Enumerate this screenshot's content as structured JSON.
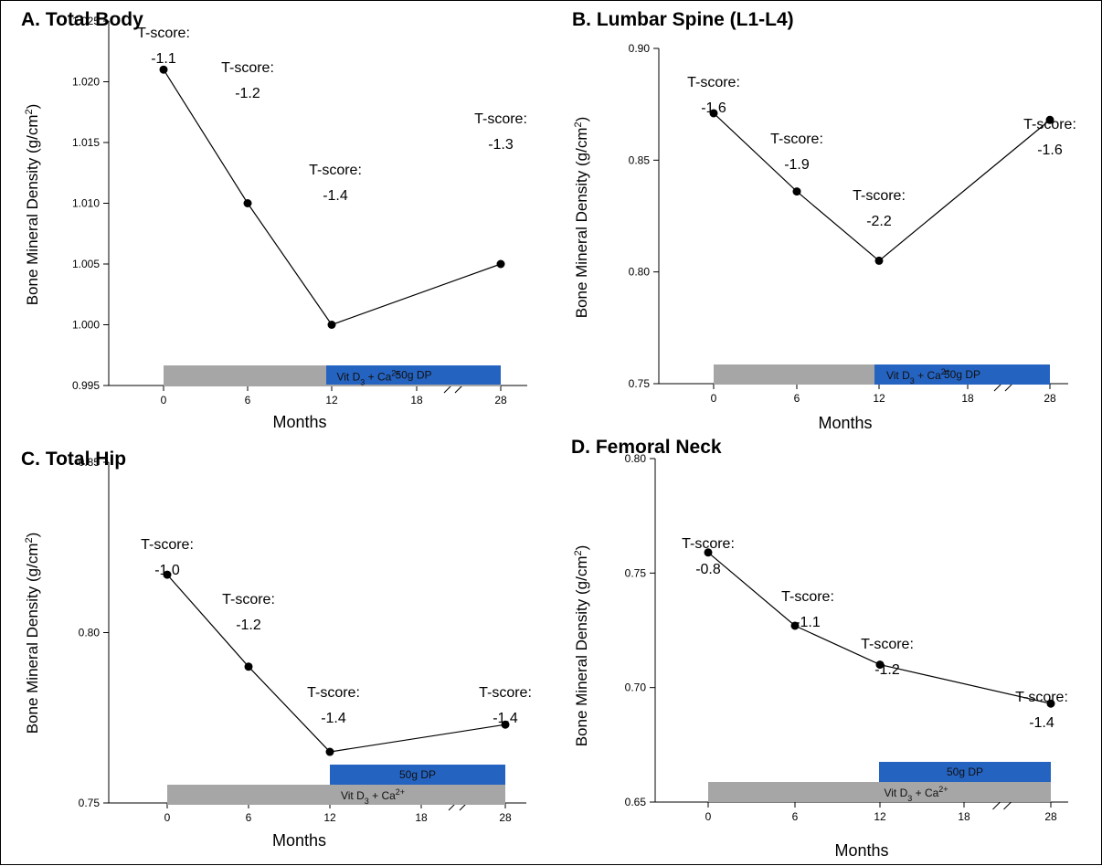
{
  "chart_data": [
    {
      "type": "line",
      "panel": "A",
      "title": "A. Total Body",
      "xlabel": "Months",
      "ylabel": "Bone Mineral Density (g/cm²)",
      "ylim": [
        0.995,
        1.025
      ],
      "yticks": [
        "0.995",
        "1.000",
        "1.005",
        "1.010",
        "1.015",
        "1.020",
        "1.025"
      ],
      "xtick_labels": [
        "0",
        "6",
        "12",
        "18",
        "28"
      ],
      "x": [
        0,
        6,
        12,
        28
      ],
      "y": [
        1.021,
        1.01,
        1.0,
        1.005
      ],
      "annotations": [
        {
          "line1": "T-score:",
          "line2": "-1.1"
        },
        {
          "line1": "T-score:",
          "line2": "-1.2"
        },
        {
          "line1": "T-score:",
          "line2": "-1.4"
        },
        {
          "line1": "T-score:",
          "line2": "-1.3"
        }
      ],
      "bars": {
        "treatment_label": "50g DP",
        "treatment_range": [
          12,
          28
        ],
        "supplement_label": "Vit D₃ + Ca²⁺",
        "supplement_range": [
          0,
          28
        ]
      },
      "axis_break": true,
      "grid": false
    },
    {
      "type": "line",
      "panel": "B",
      "title": "B. Lumbar Spine (L1-L4)",
      "xlabel": "Months",
      "ylabel": "Bone Mineral Density (g/cm²)",
      "ylim": [
        0.75,
        0.9
      ],
      "yticks": [
        "0.75",
        "0.80",
        "0.85",
        "0.90"
      ],
      "xtick_labels": [
        "0",
        "6",
        "12",
        "18",
        "28"
      ],
      "x": [
        0,
        6,
        12,
        28
      ],
      "y": [
        0.871,
        0.836,
        0.805,
        0.868
      ],
      "annotations": [
        {
          "line1": "T-score:",
          "line2": "-1.6"
        },
        {
          "line1": "T-score:",
          "line2": "-1.9"
        },
        {
          "line1": "T-score:",
          "line2": "-2.2"
        },
        {
          "line1": "T-score:",
          "line2": "-1.6"
        }
      ],
      "bars": {
        "treatment_label": "50g DP",
        "treatment_range": [
          12,
          28
        ],
        "supplement_label": "Vit D₃ + Ca²⁺",
        "supplement_range": [
          0,
          28
        ]
      },
      "axis_break": true,
      "grid": false
    },
    {
      "type": "line",
      "panel": "C",
      "title": "C. Total Hip",
      "xlabel": "Months",
      "ylabel": "Bone Mineral Density (g/cm²)",
      "ylim": [
        0.75,
        0.85
      ],
      "yticks": [
        "0.75",
        "0.80",
        "0.85"
      ],
      "xtick_labels": [
        "0",
        "6",
        "12",
        "18",
        "28"
      ],
      "x": [
        0,
        6,
        12,
        28
      ],
      "y": [
        0.817,
        0.79,
        0.765,
        0.773
      ],
      "annotations": [
        {
          "line1": "T-score:",
          "line2": "-1.0"
        },
        {
          "line1": "T-score:",
          "line2": "-1.2"
        },
        {
          "line1": "T-score:",
          "line2": "-1.4"
        },
        {
          "line1": "T-score:",
          "line2": "-1.4"
        }
      ],
      "bars": {
        "treatment_label": "50g DP",
        "treatment_range": [
          12,
          28
        ],
        "supplement_label": "Vit D₃ + Ca²⁺",
        "supplement_range": [
          0,
          28
        ]
      },
      "axis_break": true,
      "grid": false
    },
    {
      "type": "line",
      "panel": "D",
      "title": "D. Femoral Neck",
      "xlabel": "Months",
      "ylabel": "Bone Mineral Density (g/cm²)",
      "ylim": [
        0.65,
        0.8
      ],
      "yticks": [
        "0.65",
        "0.70",
        "0.75",
        "0.80"
      ],
      "xtick_labels": [
        "0",
        "6",
        "12",
        "18",
        "28"
      ],
      "x": [
        0,
        6,
        12,
        28
      ],
      "y": [
        0.759,
        0.727,
        0.71,
        0.693
      ],
      "annotations": [
        {
          "line1": "T-score:",
          "line2": "-0.8"
        },
        {
          "line1": "T-score:",
          "line2": "-1.1"
        },
        {
          "line1": "T-score:",
          "line2": "-1.2"
        },
        {
          "line1": "T-score:",
          "line2": "-1.4"
        }
      ],
      "bars": {
        "treatment_label": "50g DP",
        "treatment_range": [
          12,
          28
        ],
        "supplement_label": "Vit D₃ + Ca²⁺",
        "supplement_range": [
          0,
          28
        ]
      },
      "axis_break": true,
      "grid": false
    }
  ],
  "colors": {
    "treatment_bar": "#2563c1",
    "supplement_bar": "#a6a6a6",
    "line": "#000000",
    "marker": "#000000"
  }
}
